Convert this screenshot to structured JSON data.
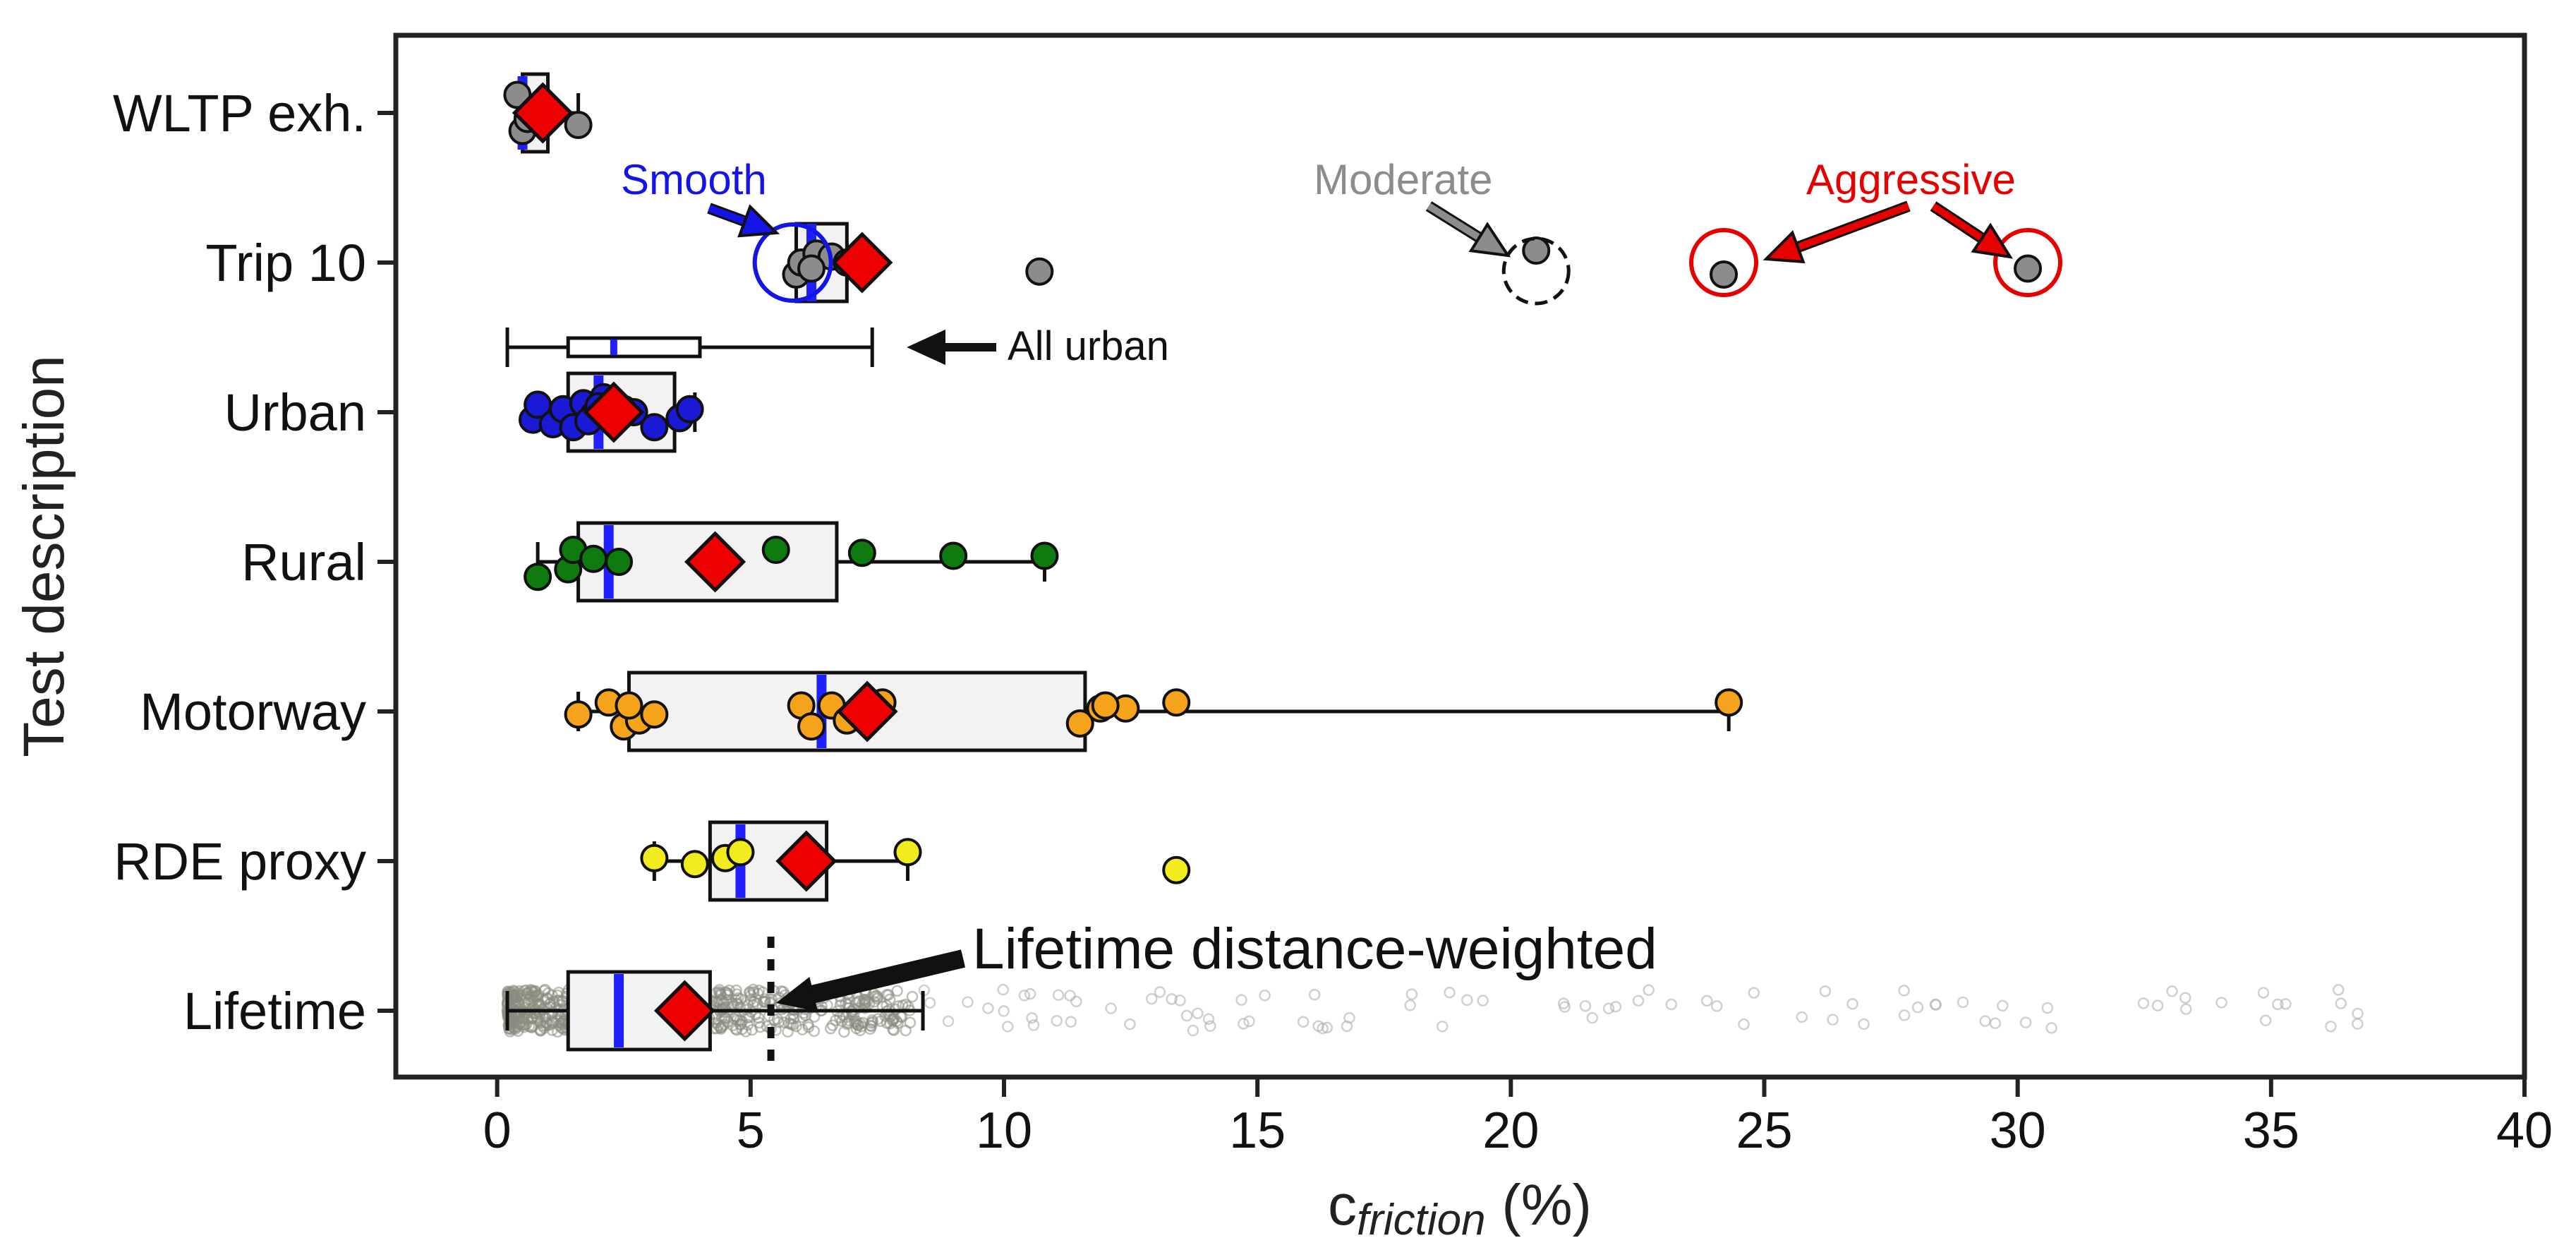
{
  "chart_data": {
    "type": "boxplot",
    "title": "",
    "xlabel": {
      "main": "c",
      "sub": "friction",
      "suffix": " (%)"
    },
    "ylabel": "Test description",
    "xlim": [
      -2,
      40
    ],
    "xticks": [
      0,
      5,
      10,
      15,
      20,
      25,
      30,
      35,
      40
    ],
    "colors": {
      "median": "#1f1fff",
      "mean": "#ee0000",
      "box_fill": "#f2f2f2",
      "smooth": "#1414e6",
      "moderate": "#8c8c8c",
      "aggressive": "#e60000",
      "lifetime_points": "#8a8a80"
    },
    "categories": [
      {
        "label": "WLTP exh.",
        "box": {
          "whislo": 0.4,
          "q1": 0.5,
          "med": 0.5,
          "q3": 1.0,
          "whishi": 1.6
        },
        "mean": 0.9,
        "point_color": "#8c8c8c",
        "points": [
          [
            0.4,
            -0.12
          ],
          [
            0.5,
            0.12
          ],
          [
            0.8,
            -0.04
          ],
          [
            0.6,
            0.04
          ],
          [
            1.6,
            0.08
          ]
        ]
      },
      {
        "label": "Trip 10",
        "box": {
          "whislo": 5.9,
          "q1": 5.9,
          "med": 6.2,
          "q3": 6.9,
          "whishi": 6.9
        },
        "mean": 7.2,
        "point_color": "#8c8c8c",
        "points": [
          [
            5.9,
            0.08
          ],
          [
            6.0,
            0.0
          ],
          [
            6.3,
            -0.06
          ],
          [
            6.6,
            -0.04
          ],
          [
            6.9,
            0.0
          ],
          [
            6.2,
            0.04
          ],
          [
            10.7,
            0.06
          ],
          [
            20.5,
            -0.08
          ],
          [
            24.2,
            0.08
          ],
          [
            30.2,
            0.04
          ]
        ]
      },
      {
        "label": "Urban",
        "box": {
          "whislo": 0.7,
          "q1": 1.4,
          "med": 2.0,
          "q3": 3.5,
          "whishi": 3.9
        },
        "mean": 2.3,
        "point_color": "#1a1ad6",
        "points": [
          [
            0.7,
            0.05
          ],
          [
            0.8,
            -0.05
          ],
          [
            1.1,
            0.08
          ],
          [
            1.3,
            -0.02
          ],
          [
            1.5,
            0.1
          ],
          [
            1.7,
            -0.06
          ],
          [
            1.9,
            0.02
          ],
          [
            2.1,
            -0.1
          ],
          [
            2.3,
            0.06
          ],
          [
            2.5,
            -0.02
          ],
          [
            2.7,
            0.0
          ],
          [
            3.1,
            0.1
          ],
          [
            3.6,
            0.04
          ],
          [
            3.8,
            -0.02
          ],
          [
            1.8,
            0.06
          ],
          [
            2.0,
            -0.04
          ]
        ]
      },
      {
        "label": "Rural",
        "box": {
          "whislo": 0.8,
          "q1": 1.6,
          "med": 2.2,
          "q3": 6.7,
          "whishi": 10.8
        },
        "mean": 4.3,
        "point_color": "#0f7a0f",
        "points": [
          [
            0.8,
            0.1
          ],
          [
            1.4,
            0.05
          ],
          [
            1.5,
            -0.08
          ],
          [
            1.9,
            -0.02
          ],
          [
            2.4,
            0.0
          ],
          [
            5.5,
            -0.08
          ],
          [
            7.2,
            -0.06
          ],
          [
            9.0,
            -0.04
          ],
          [
            10.8,
            -0.04
          ]
        ]
      },
      {
        "label": "Motorway",
        "box": {
          "whislo": 1.6,
          "q1": 2.6,
          "med": 6.4,
          "q3": 11.6,
          "whishi": 24.3
        },
        "mean": 7.3,
        "point_color": "#f5a31a",
        "points": [
          [
            1.6,
            0.02
          ],
          [
            2.2,
            -0.06
          ],
          [
            2.5,
            0.1
          ],
          [
            2.8,
            0.06
          ],
          [
            3.1,
            0.02
          ],
          [
            2.6,
            -0.04
          ],
          [
            6.0,
            -0.04
          ],
          [
            6.2,
            0.1
          ],
          [
            6.6,
            -0.04
          ],
          [
            6.9,
            0.06
          ],
          [
            7.3,
            0.02
          ],
          [
            7.6,
            -0.06
          ],
          [
            11.5,
            0.08
          ],
          [
            11.9,
            -0.02
          ],
          [
            12.4,
            -0.02
          ],
          [
            13.4,
            -0.06
          ],
          [
            12.0,
            -0.04
          ],
          [
            24.3,
            -0.06
          ]
        ]
      },
      {
        "label": "RDE proxy",
        "box": {
          "whislo": 3.1,
          "q1": 4.2,
          "med": 4.8,
          "q3": 6.5,
          "whishi": 8.1
        },
        "mean": 6.1,
        "point_color": "#f2ec1e",
        "points": [
          [
            3.1,
            -0.02
          ],
          [
            3.9,
            0.02
          ],
          [
            4.5,
            -0.02
          ],
          [
            4.8,
            -0.06
          ],
          [
            8.1,
            -0.06
          ],
          [
            13.4,
            0.06
          ]
        ]
      },
      {
        "label": "Lifetime",
        "box": {
          "whislo": 0.2,
          "q1": 1.4,
          "med": 2.4,
          "q3": 4.2,
          "whishi": 8.4
        },
        "mean": 3.7,
        "point_color": "#8a8a80",
        "cloud": true,
        "points": []
      }
    ],
    "all_urban": {
      "label": "All urban",
      "box": {
        "whislo": 0.2,
        "q1": 1.4,
        "med": 2.3,
        "q3": 4.0,
        "whishi": 7.4
      }
    },
    "lifetime_weighted": {
      "label": "Lifetime distance-weighted",
      "value": 5.4
    },
    "annotations": {
      "smooth": {
        "text": "Smooth",
        "target": [
          6.0,
          1
        ]
      },
      "moderate": {
        "text": "Moderate",
        "target": [
          20.5,
          1
        ]
      },
      "aggressive": {
        "text": "Aggressive",
        "targets": [
          [
            24.2,
            1
          ],
          [
            30.2,
            1
          ]
        ]
      }
    }
  }
}
